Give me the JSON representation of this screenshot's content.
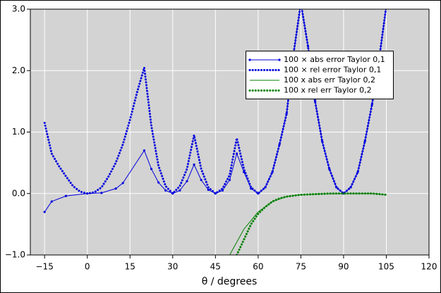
{
  "chart_data": {
    "type": "line",
    "x_label": "θ / degrees",
    "xlim": [
      -20,
      120
    ],
    "ylim": [
      -1,
      3
    ],
    "xticks": [
      {
        "value": -15,
        "label": "−15"
      },
      0,
      15,
      30,
      45,
      60,
      75,
      90,
      105,
      120
    ],
    "yticks": [
      {
        "value": -1,
        "label": "−1.0"
      },
      {
        "value": 0,
        "label": "0.0"
      },
      {
        "value": 1,
        "label": "1.0"
      },
      {
        "value": 2,
        "label": "2.0"
      },
      {
        "value": 3,
        "label": "3.0"
      }
    ],
    "grid": true,
    "legend": "upper right",
    "series": [
      {
        "name": "100 × abs error Taylor 0,1",
        "color": "#0000dd",
        "style": "solid",
        "marker": true,
        "x": [
          -15,
          -12.5,
          -7.5,
          0,
          5,
          10,
          12.5,
          20,
          22.5,
          25,
          27.5,
          30,
          32.5,
          35,
          37.5,
          40,
          42.5,
          45,
          47.5,
          50,
          52.5,
          55,
          57.5,
          60,
          62.5,
          65,
          67.5,
          70,
          72.5,
          75,
          77.5,
          80,
          82.5,
          85,
          87.5,
          90,
          92.5,
          95,
          97.5,
          100,
          102.5,
          105
        ],
        "values": [
          -0.3,
          -0.13,
          -0.04,
          0,
          0.01,
          0.08,
          0.17,
          0.7,
          0.4,
          0.18,
          0.05,
          0,
          0.05,
          0.2,
          0.47,
          0.22,
          0.06,
          0,
          0.05,
          0.22,
          0.65,
          0.35,
          0.08,
          0,
          0.1,
          0.35,
          0.8,
          1.3,
          2.3,
          3.1,
          2.4,
          1.5,
          0.85,
          0.4,
          0.1,
          0,
          0.1,
          0.35,
          0.85,
          1.45,
          2.2,
          3.05
        ]
      },
      {
        "name": "100 × rel error Taylor 0,1",
        "color": "#0000dd",
        "style": "dotted",
        "marker": false,
        "x": [
          -15,
          -12.5,
          -10,
          -7.5,
          -5,
          -2.5,
          0,
          2.5,
          5,
          7.5,
          10,
          12.5,
          15,
          17.5,
          20,
          22.5,
          25,
          27.5,
          30,
          32.5,
          35,
          37.5,
          40,
          42.5,
          45,
          47.5,
          50,
          52.5,
          55,
          57.5,
          60,
          62.5,
          65,
          67.5,
          70,
          72.5,
          75,
          77.5,
          80,
          82.5,
          85,
          87.5,
          90,
          92.5,
          95,
          97.5,
          100,
          102.5,
          105
        ],
        "values": [
          1.15,
          0.65,
          0.45,
          0.28,
          0.12,
          0.03,
          0,
          0.02,
          0.1,
          0.28,
          0.5,
          0.8,
          1.2,
          1.65,
          2.05,
          1.1,
          0.45,
          0.12,
          0,
          0.12,
          0.4,
          0.95,
          0.4,
          0.1,
          0,
          0.08,
          0.3,
          0.9,
          0.4,
          0.1,
          0,
          0.1,
          0.35,
          0.8,
          1.3,
          2.3,
          3.1,
          2.4,
          1.5,
          0.85,
          0.4,
          0.1,
          0,
          0.1,
          0.35,
          0.85,
          1.45,
          2.2,
          3.05
        ]
      },
      {
        "name": "100 x abs err Taylor 0,2",
        "color": "#008000",
        "style": "solid",
        "marker": false,
        "x": [
          50,
          55,
          60,
          65,
          70,
          75,
          80,
          90,
          100,
          105
        ],
        "values": [
          -1.0,
          -0.58,
          -0.3,
          -0.13,
          -0.05,
          -0.02,
          -0.01,
          0,
          0,
          -0.02
        ]
      },
      {
        "name": "100 x rel err Taylor 0,2",
        "color": "#008000",
        "style": "dotted",
        "marker": false,
        "x": [
          52.5,
          55,
          57.5,
          60,
          62.5,
          65,
          67.5,
          70,
          75,
          80,
          85,
          90,
          95,
          100,
          105
        ],
        "values": [
          -1.0,
          -0.75,
          -0.5,
          -0.33,
          -0.22,
          -0.13,
          -0.08,
          -0.05,
          -0.02,
          -0.01,
          0,
          0,
          0,
          0,
          -0.02
        ]
      }
    ]
  }
}
